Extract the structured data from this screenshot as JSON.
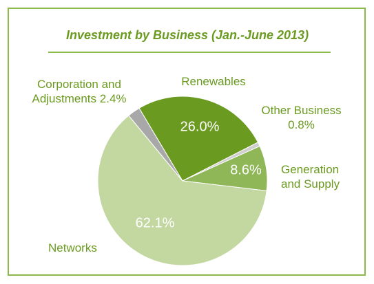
{
  "chart_data": {
    "type": "pie",
    "title": "Investment by Business (Jan.-June 2013)",
    "categories": [
      "Renewables",
      "Other Business",
      "Generation and Supply",
      "Networks",
      "Corporation and Adjustments"
    ],
    "values": [
      26.0,
      0.8,
      8.6,
      62.1,
      2.4
    ],
    "value_labels": [
      "26.0%",
      "0.8%",
      "8.6%",
      "62.1%",
      "2.4%"
    ],
    "colors": [
      "#6b9a20",
      "#cfcfcf",
      "#8fb657",
      "#c3d7a1",
      "#a8a8a8"
    ]
  }
}
